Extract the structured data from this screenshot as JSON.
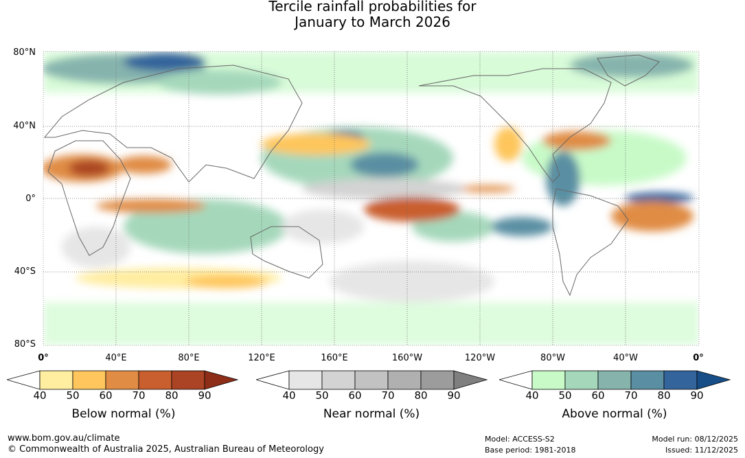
{
  "title": {
    "line1": "Tercile rainfall probabilities for",
    "line2": "January to March 2026"
  },
  "map": {
    "latitude_labels": [
      "80°N",
      "40°N",
      "0°",
      "40°S",
      "80°S"
    ],
    "longitude_labels": [
      "0°",
      "40°E",
      "80°E",
      "120°E",
      "160°E",
      "160°W",
      "120°W",
      "80°W",
      "40°W",
      "0°"
    ]
  },
  "colorbars": [
    {
      "title": "Below normal (%)",
      "ticks": [
        "40",
        "50",
        "60",
        "70",
        "80",
        "90"
      ],
      "colors": [
        "#ffffff",
        "#ffeda0",
        "#fec65c",
        "#e08c45",
        "#c95f2f",
        "#ab4424",
        "#8e2e18"
      ]
    },
    {
      "title": "Near normal (%)",
      "ticks": [
        "40",
        "50",
        "60",
        "70",
        "80",
        "90"
      ],
      "colors": [
        "#ffffff",
        "#e6e6e6",
        "#d3d3d3",
        "#c2c2c2",
        "#b0b0b0",
        "#9c9c9c",
        "#7f7f7f"
      ]
    },
    {
      "title": "Above normal (%)",
      "ticks": [
        "40",
        "50",
        "60",
        "70",
        "80",
        "90"
      ],
      "colors": [
        "#ffffff",
        "#c8fac8",
        "#a5d8bb",
        "#86b4ad",
        "#5a8fa3",
        "#33649b",
        "#174e88"
      ]
    }
  ],
  "footer": {
    "website": "www.bom.gov.au/climate",
    "copyright": "© Commonwealth of Australia 2025, Australian Bureau of Meteorology",
    "model": "Model: ACCESS-S2",
    "base_period": "Base period: 1981-2018",
    "model_run": "Model run: 08/12/2025",
    "issued": "Issued: 11/12/2025"
  }
}
